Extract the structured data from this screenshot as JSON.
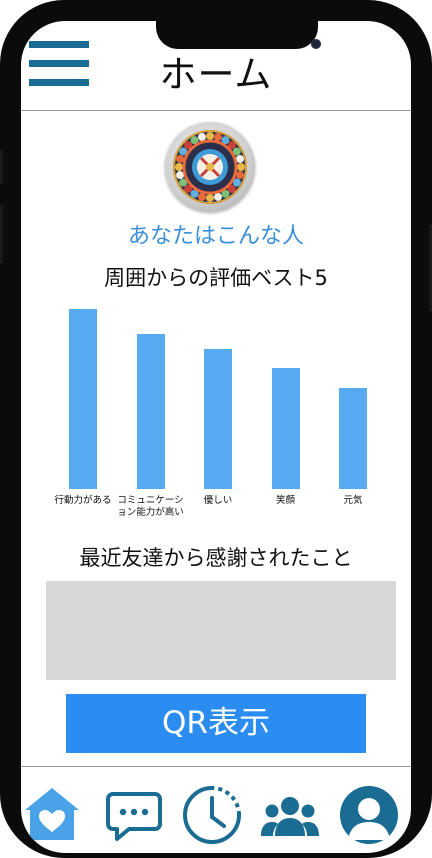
{
  "header": {
    "title": "ホーム",
    "menu_icon": "hamburger-menu-icon"
  },
  "profile": {
    "avatar_icon": "mandala-avatar-icon",
    "tagline": "あなたはこんな人"
  },
  "chart_data": {
    "type": "bar",
    "title": "周囲からの評価ベスト5",
    "categories": [
      "行動力がある",
      "コミュニケーション能力が高い",
      "優しい",
      "笑顔",
      "元気"
    ],
    "values": [
      100,
      86,
      78,
      67,
      56
    ],
    "ylim": [
      0,
      100
    ],
    "grid": false,
    "bar_color": "#57aaef"
  },
  "thanks": {
    "title": "最近友達から感謝されたこと"
  },
  "qr_button": {
    "label": "QR表示"
  },
  "bottom_nav": {
    "items": [
      {
        "icon": "home-heart-icon",
        "active": true
      },
      {
        "icon": "chat-bubble-icon",
        "active": false
      },
      {
        "icon": "history-clock-icon",
        "active": false
      },
      {
        "icon": "group-people-icon",
        "active": false
      },
      {
        "icon": "profile-user-icon",
        "active": false
      }
    ]
  },
  "colors": {
    "accent": "#2b8df2",
    "icon_dark": "#1a6c93",
    "icon_light": "#4aa3e6",
    "tagline": "#3c8fd9"
  }
}
